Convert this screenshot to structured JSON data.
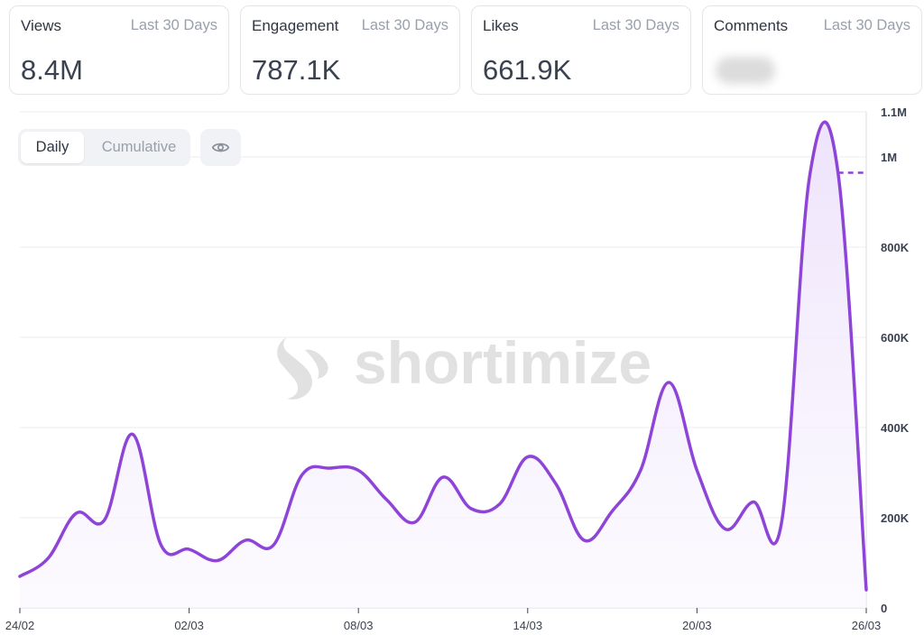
{
  "cards": [
    {
      "label": "Views",
      "range": "Last 30 Days",
      "value": "8.4M",
      "active": true
    },
    {
      "label": "Engagement",
      "range": "Last 30 Days",
      "value": "787.1K",
      "active": false
    },
    {
      "label": "Likes",
      "range": "Last 30 Days",
      "value": "661.9K",
      "active": false
    },
    {
      "label": "Comments",
      "range": "Last 30 Days",
      "value": "",
      "blurred": true,
      "active": false
    }
  ],
  "toggle": {
    "daily": "Daily",
    "cumulative": "Cumulative",
    "selected": "Daily"
  },
  "watermark": "shortimize",
  "icons": {
    "visibility": "eye-icon",
    "logo": "shortimize-logo-icon"
  },
  "colors": {
    "line": "#8f44d8",
    "fill": "#f3ecfc",
    "grid": "#eceef2"
  },
  "chart_data": {
    "type": "area",
    "title": "",
    "xlabel": "",
    "ylabel": "",
    "x": [
      "24/02",
      "25/02",
      "26/02",
      "27/02",
      "28/02",
      "01/03",
      "02/03",
      "03/03",
      "04/03",
      "05/03",
      "06/03",
      "07/03",
      "08/03",
      "09/03",
      "10/03",
      "11/03",
      "12/03",
      "13/03",
      "14/03",
      "15/03",
      "16/03",
      "17/03",
      "18/03",
      "19/03",
      "20/03",
      "21/03",
      "22/03",
      "23/03",
      "24/03",
      "25/03",
      "26/03"
    ],
    "series": [
      {
        "values": [
          70000,
          110000,
          210000,
          195000,
          385000,
          140000,
          130000,
          105000,
          150000,
          140000,
          295000,
          310000,
          305000,
          240000,
          190000,
          290000,
          220000,
          230000,
          335000,
          275000,
          150000,
          215000,
          305000,
          500000,
          305000,
          175000,
          235000,
          190000,
          960000,
          965000,
          40000
        ]
      }
    ],
    "projection": {
      "from": "25/03",
      "to": "26/03",
      "value": 965000,
      "style": "dashed"
    },
    "x_tick_labels": [
      "24/02",
      "02/03",
      "08/03",
      "14/03",
      "20/03",
      "26/03"
    ],
    "y_tick_labels": [
      "0",
      "200K",
      "400K",
      "600K",
      "800K",
      "1M",
      "1.1M"
    ],
    "y_ticks": [
      0,
      200000,
      400000,
      600000,
      800000,
      1000000,
      1100000
    ],
    "ylim": [
      0,
      1100000
    ],
    "grid": true,
    "y_axis_side": "right"
  }
}
